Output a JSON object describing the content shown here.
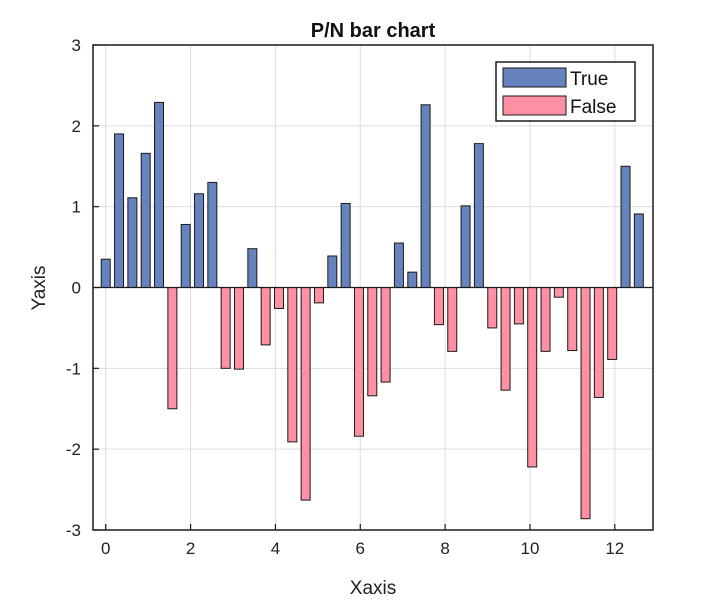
{
  "chart_data": {
    "type": "bar",
    "title": "P/N bar chart",
    "xlabel": "Xaxis",
    "ylabel": "Yaxis",
    "xlim": [
      -0.3,
      12.9
    ],
    "ylim": [
      -3,
      3
    ],
    "grid": true,
    "legend_position": "top-right",
    "x_ticks": [
      0,
      2,
      4,
      6,
      8,
      10,
      12
    ],
    "y_ticks": [
      -3,
      -2,
      -1,
      0,
      1,
      2,
      3
    ],
    "x_tick_labels": [
      "0",
      "2",
      "4",
      "6",
      "8",
      "10",
      "12"
    ],
    "y_tick_labels": [
      "-3",
      "-2",
      "-1",
      "0",
      "1",
      "2",
      "3"
    ],
    "series": [
      {
        "name": "True",
        "color": "#6783be",
        "edge_color": "#1a1a1a"
      },
      {
        "name": "False",
        "color": "#fd90a2",
        "edge_color": "#1a1a1a"
      }
    ],
    "x": [
      0,
      0.314,
      0.628,
      0.942,
      1.256,
      1.571,
      1.885,
      2.199,
      2.513,
      2.827,
      3.141,
      3.456,
      3.77,
      4.084,
      4.398,
      4.712,
      5.026,
      5.341,
      5.655,
      5.969,
      6.283,
      6.597,
      6.911,
      7.226,
      7.54,
      7.854,
      8.168,
      8.482,
      8.796,
      9.111,
      9.425,
      9.739,
      10.053,
      10.367,
      10.681,
      10.996,
      11.31,
      11.624,
      11.938,
      12.252,
      12.566
    ],
    "values": [
      0.35,
      1.9,
      1.11,
      1.66,
      2.29,
      -1.5,
      0.78,
      1.16,
      1.3,
      -1.0,
      -1.01,
      0.48,
      -0.71,
      -0.26,
      -1.91,
      -2.63,
      -0.19,
      0.39,
      1.04,
      -1.84,
      -1.34,
      -1.17,
      0.55,
      0.19,
      2.26,
      -0.46,
      -0.79,
      1.01,
      1.78,
      -0.5,
      -1.27,
      -0.45,
      -2.22,
      -0.79,
      -0.12,
      -0.78,
      -2.86,
      -1.36,
      -0.89,
      1.5,
      0.91
    ]
  }
}
